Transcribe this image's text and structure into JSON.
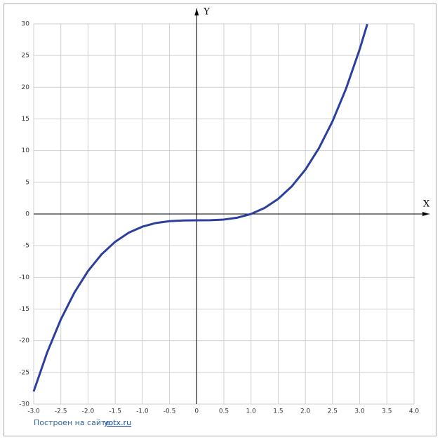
{
  "chart_data": {
    "type": "line",
    "x_label": "X",
    "y_label": "Y",
    "xlim": [
      -3,
      4
    ],
    "ylim": [
      -30,
      30
    ],
    "xticks": [
      {
        "value": -3,
        "label": "-3.0"
      },
      -2.5,
      {
        "value": -2,
        "label": "-2.0"
      },
      -1.5,
      {
        "value": -1,
        "label": "-1.0"
      },
      -0.5,
      0,
      0.5,
      {
        "value": 1,
        "label": "1.0"
      },
      1.5,
      {
        "value": 2,
        "label": "2.0"
      },
      2.5,
      {
        "value": 3,
        "label": "3.0"
      },
      3.5,
      {
        "value": 4,
        "label": "4.0"
      }
    ],
    "yticks": [
      -30,
      -25,
      -20,
      -15,
      -10,
      -5,
      0,
      5,
      10,
      15,
      20,
      25,
      30
    ],
    "grid": true,
    "x": [
      -3,
      -2.75,
      -2.5,
      -2.25,
      -2,
      -1.75,
      -1.5,
      -1.25,
      -1,
      -0.75,
      -0.5,
      -0.25,
      0,
      0.25,
      0.5,
      0.75,
      1,
      1.25,
      1.5,
      1.75,
      2,
      2.25,
      2.5,
      2.75,
      3,
      3.14
    ],
    "series": [
      {
        "color": "#2b3f9e",
        "values": [
          -28,
          -21.8,
          -16.63,
          -12.39,
          -9,
          -6.36,
          -4.38,
          -2.95,
          -2,
          -1.42,
          -1.13,
          -1.02,
          -1,
          -0.98,
          -0.88,
          -0.58,
          0,
          0.95,
          2.38,
          4.36,
          7,
          10.39,
          14.63,
          19.8,
          26,
          29.96
        ]
      }
    ]
  },
  "footer": {
    "text": "Построен на сайте",
    "link": "yotx.ru"
  }
}
